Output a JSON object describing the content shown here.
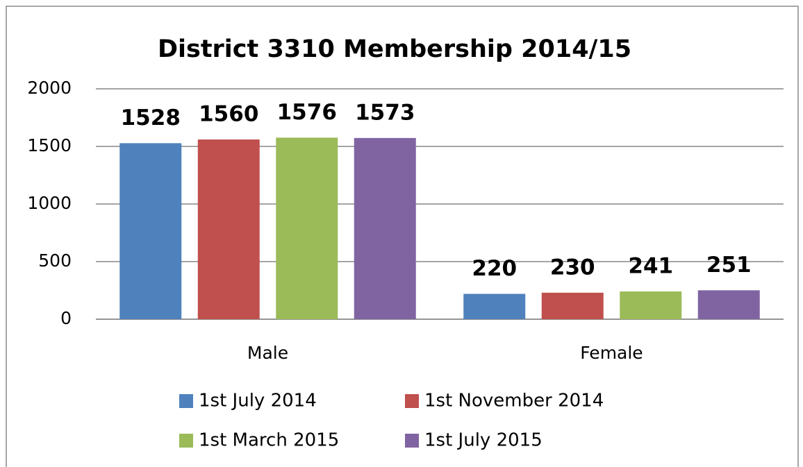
{
  "chart_data": {
    "type": "bar",
    "title": "District 3310 Membership 2014/15",
    "categories": [
      "Male",
      "Female"
    ],
    "series": [
      {
        "name": "1st July 2014",
        "color": "#4f81bd",
        "values": [
          1528,
          220
        ]
      },
      {
        "name": "1st November 2014",
        "color": "#c0504d",
        "values": [
          1560,
          230
        ]
      },
      {
        "name": "1st March 2015",
        "color": "#9bbb59",
        "values": [
          1576,
          241
        ]
      },
      {
        "name": "1st July 2015",
        "color": "#8064a2",
        "values": [
          1573,
          251
        ]
      }
    ],
    "ylim": [
      0,
      2000
    ],
    "yticks": [
      0,
      500,
      1000,
      1500,
      2000
    ],
    "grid": true,
    "legend": "bottom"
  }
}
